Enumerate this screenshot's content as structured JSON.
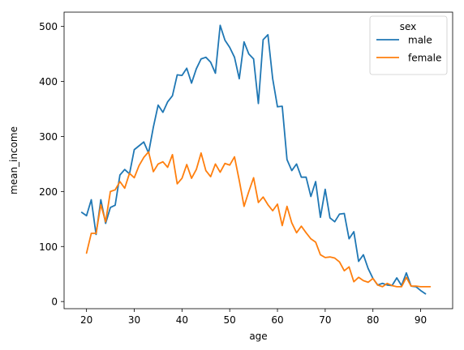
{
  "chart_data": {
    "type": "line",
    "xlabel": "age",
    "ylabel": "mean_income",
    "xlim": [
      15.3,
      96.7
    ],
    "ylim": [
      -13,
      526
    ],
    "xticks": [
      20,
      30,
      40,
      50,
      60,
      70,
      80,
      90
    ],
    "yticks": [
      0,
      100,
      200,
      300,
      400,
      500
    ],
    "grid": false,
    "legend": {
      "title": "sex",
      "placement": "top-right"
    },
    "series": [
      {
        "name": "male",
        "color": "#1f77b4",
        "x": [
          19,
          20,
          21,
          22,
          23,
          24,
          25,
          26,
          27,
          28,
          29,
          30,
          31,
          32,
          33,
          34,
          35,
          36,
          37,
          38,
          39,
          40,
          41,
          42,
          43,
          44,
          45,
          46,
          47,
          48,
          49,
          50,
          51,
          52,
          53,
          54,
          55,
          56,
          57,
          58,
          59,
          60,
          61,
          62,
          63,
          64,
          65,
          66,
          67,
          68,
          69,
          70,
          71,
          72,
          73,
          74,
          75,
          76,
          77,
          78,
          79,
          80,
          81,
          82,
          83,
          84,
          85,
          86,
          87,
          88,
          89,
          90,
          91
        ],
        "y": [
          162,
          156,
          185,
          122,
          185,
          142,
          171,
          175,
          230,
          240,
          232,
          276,
          283,
          290,
          270,
          317,
          357,
          344,
          363,
          374,
          412,
          411,
          424,
          397,
          423,
          441,
          444,
          435,
          415,
          502,
          475,
          462,
          444,
          405,
          472,
          450,
          441,
          360,
          476,
          485,
          405,
          354,
          355,
          258,
          238,
          250,
          226,
          226,
          191,
          218,
          153,
          204,
          152,
          145,
          159,
          160,
          114,
          127,
          73,
          85,
          60,
          42,
          30,
          33,
          30,
          29,
          43,
          29,
          52,
          28,
          27,
          20,
          14
        ]
      },
      {
        "name": "female",
        "color": "#ff7f0e",
        "x": [
          20,
          21,
          22,
          23,
          24,
          25,
          26,
          27,
          28,
          29,
          30,
          31,
          32,
          33,
          34,
          35,
          36,
          37,
          38,
          39,
          40,
          41,
          42,
          43,
          44,
          45,
          46,
          47,
          48,
          49,
          50,
          51,
          52,
          53,
          54,
          55,
          56,
          57,
          58,
          59,
          60,
          61,
          62,
          63,
          64,
          65,
          66,
          67,
          68,
          69,
          70,
          71,
          72,
          73,
          74,
          75,
          76,
          77,
          78,
          79,
          80,
          81,
          82,
          83,
          84,
          85,
          86,
          87,
          88,
          89,
          90,
          91,
          92
        ],
        "y": [
          88,
          124,
          124,
          176,
          145,
          200,
          203,
          218,
          206,
          233,
          225,
          247,
          262,
          272,
          236,
          250,
          254,
          244,
          267,
          214,
          224,
          249,
          224,
          240,
          270,
          238,
          227,
          250,
          235,
          251,
          248,
          263,
          220,
          173,
          200,
          225,
          180,
          190,
          176,
          165,
          177,
          138,
          173,
          143,
          125,
          137,
          125,
          114,
          108,
          85,
          80,
          81,
          79,
          72,
          56,
          63,
          36,
          44,
          38,
          35,
          42,
          30,
          27,
          33,
          29,
          27,
          27,
          44,
          28,
          28,
          27,
          27,
          27
        ]
      }
    ]
  }
}
